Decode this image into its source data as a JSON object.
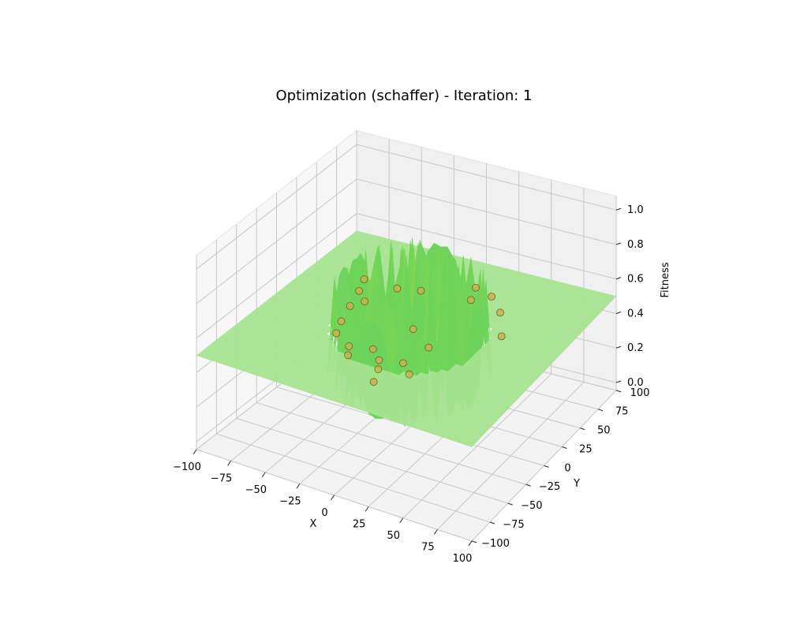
{
  "chart_data": {
    "type": "surface3d",
    "title": "Optimization (schaffer) - Iteration: 1",
    "xlabel": "X",
    "ylabel": "Y",
    "zlabel": "Fitness",
    "xlim": [
      -100,
      100
    ],
    "ylim": [
      -100,
      100
    ],
    "zlim": [
      0.0,
      1.0
    ],
    "xticks": [
      "−100",
      "−75",
      "−50",
      "−25",
      "0",
      "25",
      "50",
      "75",
      "100"
    ],
    "yticks": [
      "−100",
      "−75",
      "−50",
      "−25",
      "0",
      "25",
      "50",
      "75",
      "100"
    ],
    "zticks": [
      "0.0",
      "0.2",
      "0.4",
      "0.6",
      "0.8",
      "1.0"
    ],
    "grid": true,
    "surface": {
      "function": "schaffer",
      "colormap": "viridis",
      "plateau_fitness": 0.5,
      "colors": {
        "low": "#3fbf6f",
        "mid": "#6fd45a",
        "plateau": "#a6e38f",
        "high": "#e4e22a"
      }
    },
    "particles": {
      "color": "#c9b24c",
      "edge_color": "#6b6330",
      "points": [
        {
          "x": -55,
          "y": 35,
          "z": 0.55
        },
        {
          "x": -50,
          "y": 20,
          "z": 0.55
        },
        {
          "x": -40,
          "y": 10,
          "z": 0.55
        },
        {
          "x": -45,
          "y": 0,
          "z": 0.55
        },
        {
          "x": -30,
          "y": 35,
          "z": 0.55
        },
        {
          "x": -15,
          "y": 40,
          "z": 0.55
        },
        {
          "x": 15,
          "y": 60,
          "z": 0.55
        },
        {
          "x": 20,
          "y": 45,
          "z": 0.55
        },
        {
          "x": 30,
          "y": 55,
          "z": 0.55
        },
        {
          "x": 45,
          "y": 40,
          "z": 0.55
        },
        {
          "x": 60,
          "y": 15,
          "z": 0.55
        },
        {
          "x": -40,
          "y": -20,
          "z": 0.55
        },
        {
          "x": -35,
          "y": -35,
          "z": 0.55
        },
        {
          "x": -20,
          "y": -45,
          "z": 0.55
        },
        {
          "x": -15,
          "y": -55,
          "z": 0.55
        },
        {
          "x": -5,
          "y": -40,
          "z": 0.55
        },
        {
          "x": 5,
          "y": -50,
          "z": 0.55
        },
        {
          "x": 10,
          "y": -60,
          "z": 0.55
        },
        {
          "x": 20,
          "y": -45,
          "z": 0.55
        },
        {
          "x": 30,
          "y": -55,
          "z": 0.55
        },
        {
          "x": 15,
          "y": -75,
          "z": 0.55
        },
        {
          "x": 5,
          "y": -5,
          "z": 0.55
        },
        {
          "x": 25,
          "y": -20,
          "z": 0.55
        }
      ]
    }
  }
}
